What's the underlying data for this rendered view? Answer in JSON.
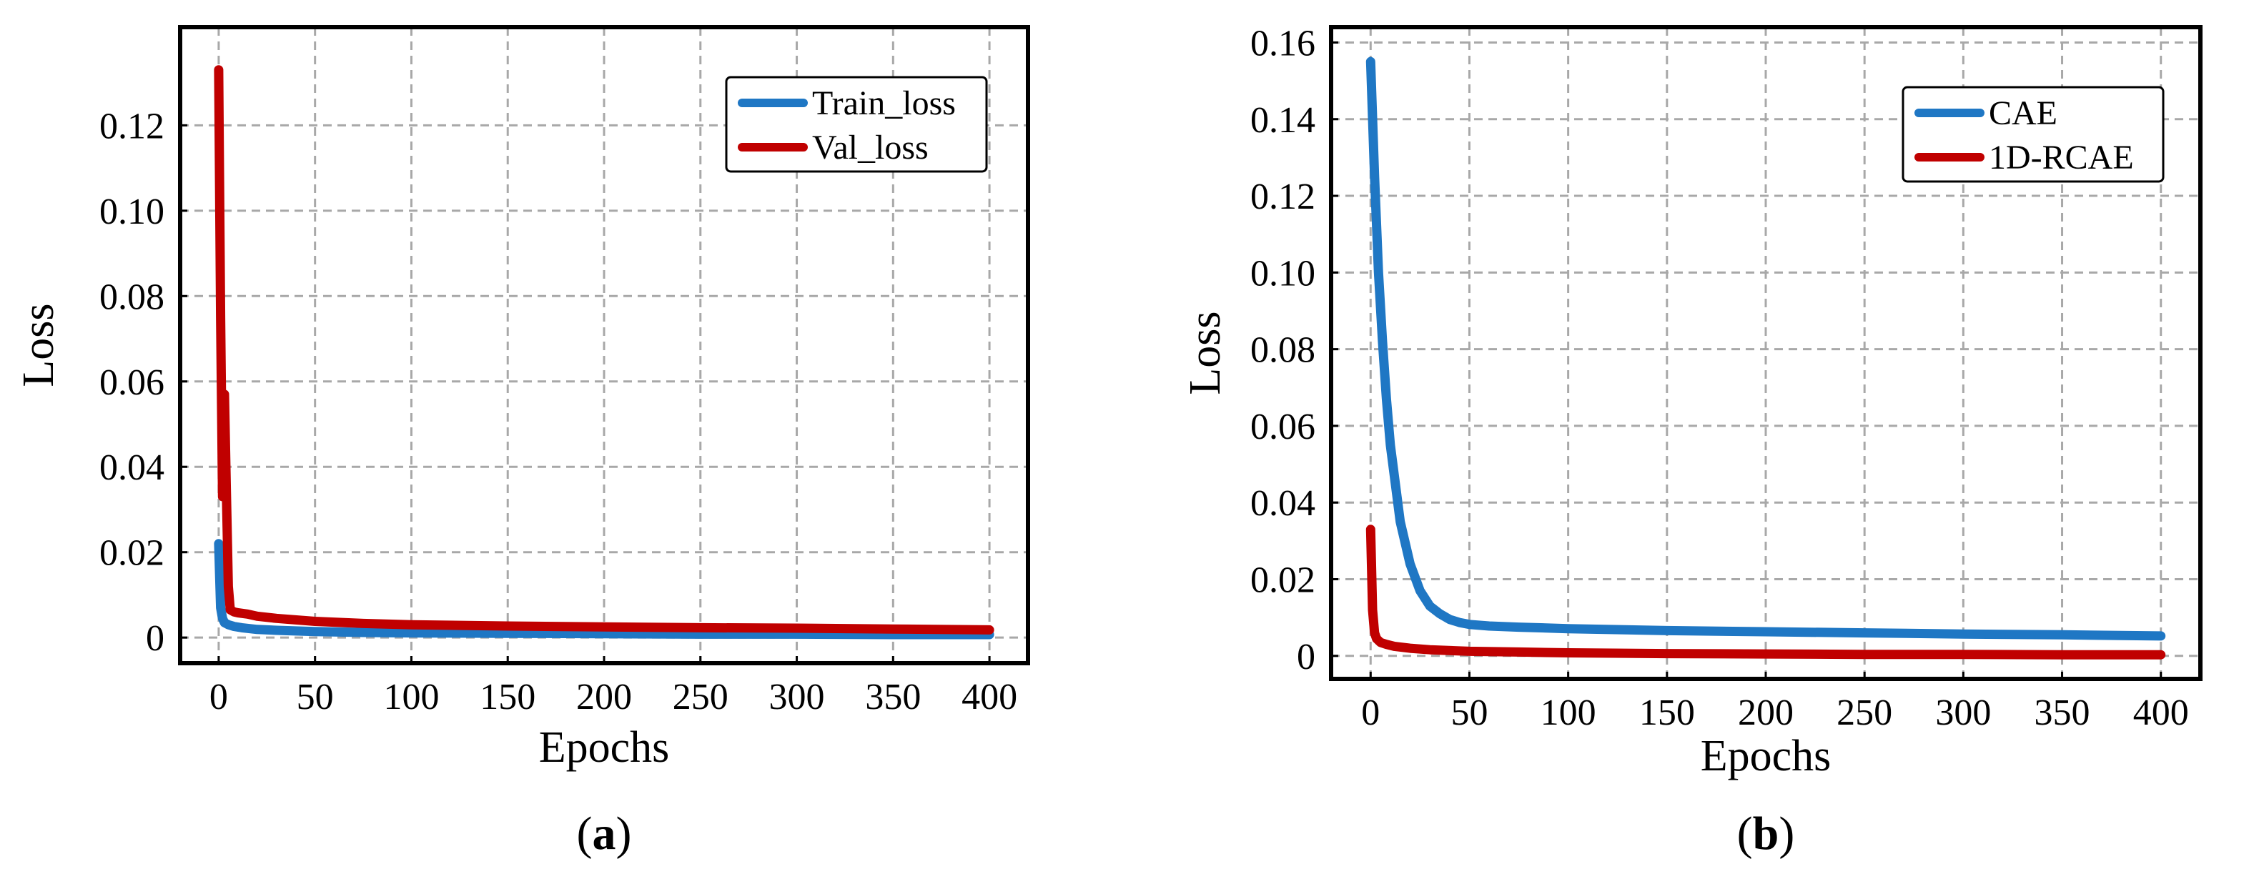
{
  "colors": {
    "blue": "#1f77c4",
    "red": "#c00000",
    "grid": "#a8a8a8",
    "frame": "#000000"
  },
  "panels": [
    {
      "label_open": "(",
      "label_letter": "a",
      "label_close": ")"
    },
    {
      "label_open": "(",
      "label_letter": "b",
      "label_close": ")"
    }
  ],
  "chart_data": [
    {
      "type": "line",
      "title": "",
      "xlabel": "Epochs",
      "ylabel": "Loss",
      "xlim": [
        -20,
        420
      ],
      "ylim": [
        -0.006,
        0.143
      ],
      "xticks": [
        0,
        50,
        100,
        150,
        200,
        250,
        300,
        350,
        400
      ],
      "xtick_labels": [
        "0",
        "50",
        "100",
        "150",
        "200",
        "250",
        "300",
        "350",
        "400"
      ],
      "yticks": [
        0,
        0.02,
        0.04,
        0.06,
        0.08,
        0.1,
        0.12
      ],
      "ytick_labels": [
        "0",
        "0.02",
        "0.04",
        "0.06",
        "0.08",
        "0.10",
        "0.12"
      ],
      "grid": true,
      "legend_position": "top-right",
      "series": [
        {
          "name": "Train_loss",
          "color": "#1f77c4",
          "x": [
            0,
            1,
            2,
            3,
            5,
            8,
            12,
            20,
            30,
            50,
            75,
            100,
            150,
            200,
            250,
            300,
            350,
            400
          ],
          "y": [
            0.022,
            0.007,
            0.0045,
            0.0035,
            0.003,
            0.0026,
            0.0023,
            0.0019,
            0.0017,
            0.0014,
            0.0012,
            0.0011,
            0.001,
            0.0009,
            0.0008,
            0.0008,
            0.0007,
            0.0007
          ]
        },
        {
          "name": "Val_loss",
          "color": "#c00000",
          "x": [
            0,
            1,
            2,
            3,
            4,
            5,
            6,
            8,
            10,
            15,
            20,
            30,
            50,
            75,
            100,
            150,
            200,
            250,
            300,
            350,
            400
          ],
          "y": [
            0.133,
            0.075,
            0.033,
            0.057,
            0.034,
            0.012,
            0.0065,
            0.006,
            0.0058,
            0.0055,
            0.005,
            0.0045,
            0.0038,
            0.0033,
            0.003,
            0.0027,
            0.0025,
            0.0023,
            0.0022,
            0.002,
            0.0018
          ]
        }
      ]
    },
    {
      "type": "line",
      "title": "",
      "xlabel": "Epochs",
      "ylabel": "Loss",
      "xlim": [
        -20,
        420
      ],
      "ylim": [
        -0.006,
        0.164
      ],
      "xticks": [
        0,
        50,
        100,
        150,
        200,
        250,
        300,
        350,
        400
      ],
      "xtick_labels": [
        "0",
        "50",
        "100",
        "150",
        "200",
        "250",
        "300",
        "350",
        "400"
      ],
      "yticks": [
        0,
        0.02,
        0.04,
        0.06,
        0.08,
        0.1,
        0.12,
        0.14,
        0.16
      ],
      "ytick_labels": [
        "0",
        "0.02",
        "0.04",
        "0.06",
        "0.08",
        "0.10",
        "0.12",
        "0.14",
        "0.16"
      ],
      "grid": true,
      "legend_position": "top-right",
      "series": [
        {
          "name": "CAE",
          "color": "#1f77c4",
          "x": [
            0,
            2,
            4,
            6,
            8,
            10,
            15,
            20,
            25,
            30,
            35,
            40,
            45,
            50,
            60,
            75,
            100,
            150,
            200,
            250,
            300,
            350,
            400
          ],
          "y": [
            0.155,
            0.125,
            0.1,
            0.082,
            0.067,
            0.055,
            0.035,
            0.024,
            0.017,
            0.013,
            0.011,
            0.0095,
            0.0087,
            0.0082,
            0.0078,
            0.0075,
            0.0071,
            0.0066,
            0.0063,
            0.006,
            0.0057,
            0.0055,
            0.0052
          ]
        },
        {
          "name": "1D-RCAE",
          "color": "#c00000",
          "x": [
            0,
            1,
            2,
            3,
            5,
            8,
            12,
            20,
            30,
            50,
            75,
            100,
            150,
            200,
            250,
            300,
            350,
            400
          ],
          "y": [
            0.033,
            0.012,
            0.006,
            0.0045,
            0.0035,
            0.003,
            0.0025,
            0.002,
            0.0016,
            0.0012,
            0.001,
            0.0008,
            0.0006,
            0.0005,
            0.0004,
            0.0004,
            0.0003,
            0.0003
          ]
        }
      ]
    }
  ]
}
